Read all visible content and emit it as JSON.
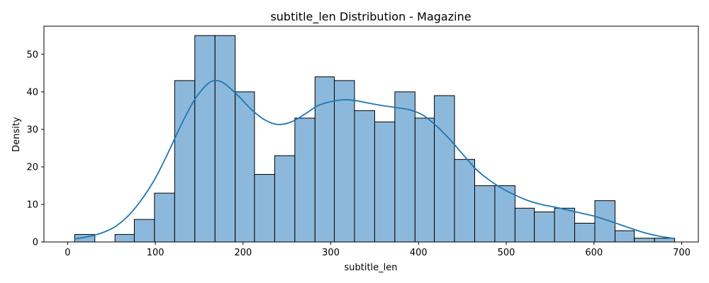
{
  "chart_data": {
    "type": "bar",
    "title": "subtitle_len Distribution - Magazine",
    "xlabel": "subtitle_len",
    "ylabel": "Density",
    "xlim": [
      -27,
      719
    ],
    "ylim": [
      0,
      57.5
    ],
    "xticks": [
      0,
      100,
      200,
      300,
      400,
      500,
      600,
      700
    ],
    "yticks": [
      0,
      10,
      20,
      30,
      40,
      50
    ],
    "grid": false,
    "bar_color": "#8cb9db",
    "edge_color": "#000000",
    "kde_color": "#1f77b4",
    "bins": [
      {
        "x0": 8,
        "x1": 31,
        "count": 2
      },
      {
        "x0": 31,
        "x1": 54,
        "count": 0
      },
      {
        "x0": 54,
        "x1": 76,
        "count": 2
      },
      {
        "x0": 76,
        "x1": 99,
        "count": 6
      },
      {
        "x0": 99,
        "x1": 122,
        "count": 13
      },
      {
        "x0": 122,
        "x1": 145,
        "count": 43
      },
      {
        "x0": 145,
        "x1": 168,
        "count": 55
      },
      {
        "x0": 168,
        "x1": 191,
        "count": 55
      },
      {
        "x0": 191,
        "x1": 213,
        "count": 40
      },
      {
        "x0": 213,
        "x1": 236,
        "count": 18
      },
      {
        "x0": 236,
        "x1": 259,
        "count": 23
      },
      {
        "x0": 259,
        "x1": 282,
        "count": 33
      },
      {
        "x0": 282,
        "x1": 304,
        "count": 44
      },
      {
        "x0": 304,
        "x1": 327,
        "count": 43
      },
      {
        "x0": 327,
        "x1": 350,
        "count": 35
      },
      {
        "x0": 350,
        "x1": 373,
        "count": 32
      },
      {
        "x0": 373,
        "x1": 396,
        "count": 40
      },
      {
        "x0": 396,
        "x1": 418,
        "count": 33
      },
      {
        "x0": 418,
        "x1": 441,
        "count": 39
      },
      {
        "x0": 441,
        "x1": 464,
        "count": 22
      },
      {
        "x0": 464,
        "x1": 487,
        "count": 15
      },
      {
        "x0": 487,
        "x1": 510,
        "count": 15
      },
      {
        "x0": 510,
        "x1": 532,
        "count": 9
      },
      {
        "x0": 532,
        "x1": 555,
        "count": 8
      },
      {
        "x0": 555,
        "x1": 578,
        "count": 9
      },
      {
        "x0": 578,
        "x1": 601,
        "count": 5
      },
      {
        "x0": 601,
        "x1": 624,
        "count": 11
      },
      {
        "x0": 624,
        "x1": 646,
        "count": 3
      },
      {
        "x0": 646,
        "x1": 669,
        "count": 1
      },
      {
        "x0": 669,
        "x1": 692,
        "count": 1
      }
    ],
    "kde": {
      "x": [
        8,
        25,
        40,
        55,
        70,
        85,
        100,
        115,
        130,
        145,
        160,
        170,
        180,
        195,
        210,
        225,
        240,
        255,
        270,
        285,
        300,
        315,
        330,
        345,
        360,
        375,
        390,
        405,
        420,
        435,
        450,
        465,
        480,
        495,
        510,
        525,
        540,
        555,
        570,
        585,
        600,
        615,
        630,
        645,
        660,
        675,
        692
      ],
      "y": [
        0.8,
        1.5,
        2.5,
        4.2,
        7.2,
        11.5,
        17.0,
        24.0,
        31.5,
        38.0,
        42.2,
        43.0,
        42.0,
        38.8,
        35.2,
        32.5,
        31.3,
        32.0,
        34.0,
        36.3,
        37.4,
        37.9,
        37.6,
        36.9,
        36.3,
        35.8,
        35.2,
        33.8,
        31.0,
        27.5,
        23.5,
        19.5,
        16.6,
        14.3,
        12.5,
        11.0,
        10.0,
        9.3,
        8.5,
        7.7,
        6.9,
        5.8,
        4.6,
        3.4,
        2.3,
        1.5,
        0.9
      ]
    }
  }
}
